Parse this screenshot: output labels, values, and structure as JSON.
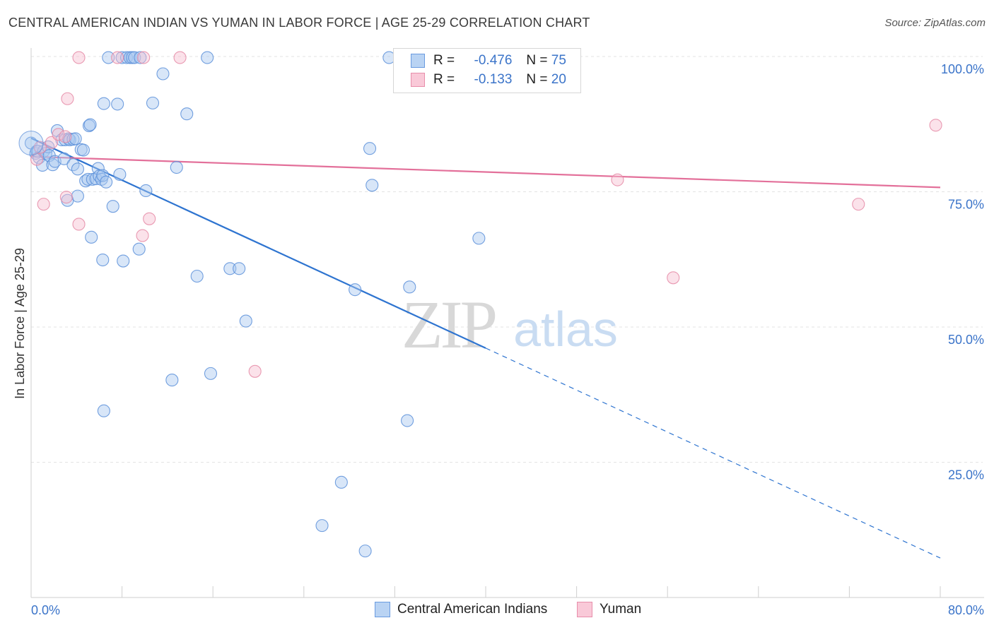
{
  "header": {
    "title": "CENTRAL AMERICAN INDIAN VS YUMAN IN LABOR FORCE | AGE 25-29 CORRELATION CHART",
    "source": "Source: ZipAtlas.com"
  },
  "watermark": {
    "zip": "ZIP",
    "atlas": "atlas"
  },
  "colors": {
    "blue_fill": "#a8c8f0",
    "blue_stroke": "#5b8fd9",
    "blue_line": "#2e74d0",
    "pink_fill": "#f6bfd0",
    "pink_stroke": "#e58aa6",
    "pink_line": "#e3709a",
    "axis_text": "#3b74c9",
    "grid": "#e3e3e3"
  },
  "legend": {
    "rows": [
      {
        "r_label": "R =",
        "r_value": "-0.476",
        "n_label": "N =",
        "n_value": "75"
      },
      {
        "r_label": "R =",
        "r_value": "-0.133",
        "n_label": "N =",
        "n_value": "20"
      }
    ]
  },
  "bottom_legend": {
    "series1": "Central American Indians",
    "series2": "Yuman"
  },
  "chart_data": {
    "type": "scatter",
    "title": "CENTRAL AMERICAN INDIAN VS YUMAN IN LABOR FORCE | AGE 25-29 CORRELATION CHART",
    "xlabel": "",
    "ylabel": "In Labor Force | Age 25-29",
    "xlim": [
      0,
      80
    ],
    "ylim": [
      0,
      100
    ],
    "x_tick_labels": [
      "0.0%",
      "80.0%"
    ],
    "y_tick_labels": [
      "25.0%",
      "50.0%",
      "75.0%",
      "100.0%"
    ],
    "y_ticks": [
      25,
      50,
      75,
      100
    ],
    "grid": true,
    "series": [
      {
        "name": "Central American Indians",
        "R": -0.476,
        "N": 75,
        "trend": {
          "x0": 0,
          "y0": 84.9,
          "x_solid_end": 40,
          "x1": 80,
          "y1": 7.3
        },
        "points": [
          [
            0.0,
            84.0
          ],
          [
            0.4,
            82.1
          ],
          [
            0.5,
            82.5
          ],
          [
            0.6,
            82.5
          ],
          [
            0.7,
            81.3
          ],
          [
            1.0,
            79.9
          ],
          [
            1.1,
            82.5
          ],
          [
            1.3,
            82.1
          ],
          [
            1.5,
            83.3
          ],
          [
            1.6,
            81.7
          ],
          [
            1.9,
            80.0
          ],
          [
            2.1,
            80.6
          ],
          [
            2.3,
            86.3
          ],
          [
            2.7,
            84.6
          ],
          [
            2.9,
            81.1
          ],
          [
            3.0,
            84.6
          ],
          [
            3.2,
            73.4
          ],
          [
            3.3,
            84.8
          ],
          [
            3.4,
            84.6
          ],
          [
            3.7,
            84.7
          ],
          [
            3.9,
            84.8
          ],
          [
            3.7,
            80.0
          ],
          [
            4.1,
            74.2
          ],
          [
            4.1,
            79.2
          ],
          [
            4.4,
            82.8
          ],
          [
            4.6,
            82.7
          ],
          [
            4.8,
            77.0
          ],
          [
            5.0,
            77.3
          ],
          [
            5.1,
            87.2
          ],
          [
            5.2,
            87.4
          ],
          [
            5.3,
            66.6
          ],
          [
            5.4,
            77.3
          ],
          [
            5.7,
            77.4
          ],
          [
            5.9,
            79.3
          ],
          [
            6.0,
            77.9
          ],
          [
            6.2,
            77.3
          ],
          [
            6.3,
            78.0
          ],
          [
            6.3,
            62.4
          ],
          [
            6.4,
            91.3
          ],
          [
            6.4,
            34.5
          ],
          [
            6.6,
            76.8
          ],
          [
            6.8,
            99.8
          ],
          [
            7.2,
            72.3
          ],
          [
            7.6,
            91.2
          ],
          [
            7.8,
            78.2
          ],
          [
            8.0,
            99.8
          ],
          [
            8.1,
            62.2
          ],
          [
            8.4,
            99.8
          ],
          [
            8.7,
            99.8
          ],
          [
            8.9,
            99.8
          ],
          [
            9.1,
            99.8
          ],
          [
            9.6,
            99.8
          ],
          [
            9.5,
            64.4
          ],
          [
            10.1,
            75.2
          ],
          [
            10.7,
            91.4
          ],
          [
            11.6,
            96.8
          ],
          [
            12.8,
            79.5
          ],
          [
            13.7,
            89.4
          ],
          [
            14.6,
            59.4
          ],
          [
            15.5,
            99.8
          ],
          [
            15.8,
            41.4
          ],
          [
            17.5,
            60.8
          ],
          [
            18.3,
            60.8
          ],
          [
            18.9,
            51.1
          ],
          [
            12.4,
            40.2
          ],
          [
            27.3,
            21.3
          ],
          [
            28.5,
            56.9
          ],
          [
            29.4,
            8.6
          ],
          [
            29.8,
            83.0
          ],
          [
            30.0,
            76.2
          ],
          [
            31.5,
            99.8
          ],
          [
            33.1,
            32.7
          ],
          [
            33.3,
            57.4
          ],
          [
            39.4,
            66.4
          ],
          [
            25.6,
            13.3
          ]
        ]
      },
      {
        "name": "Yuman",
        "R": -0.133,
        "N": 20,
        "trend": {
          "x0": 0,
          "y0": 81.5,
          "x1": 80,
          "y1": 75.8
        },
        "points": [
          [
            0.5,
            81.0
          ],
          [
            0.8,
            83.2
          ],
          [
            1.1,
            72.7
          ],
          [
            1.8,
            84.1
          ],
          [
            2.4,
            85.6
          ],
          [
            3.0,
            85.2
          ],
          [
            3.1,
            74.0
          ],
          [
            3.2,
            92.2
          ],
          [
            4.2,
            69.0
          ],
          [
            4.2,
            99.8
          ],
          [
            7.6,
            99.8
          ],
          [
            9.8,
            66.9
          ],
          [
            9.9,
            99.8
          ],
          [
            10.4,
            70.0
          ],
          [
            13.1,
            99.8
          ],
          [
            19.7,
            41.8
          ],
          [
            51.6,
            77.2
          ],
          [
            56.5,
            59.1
          ],
          [
            72.8,
            72.7
          ],
          [
            79.6,
            87.3
          ]
        ]
      }
    ]
  }
}
